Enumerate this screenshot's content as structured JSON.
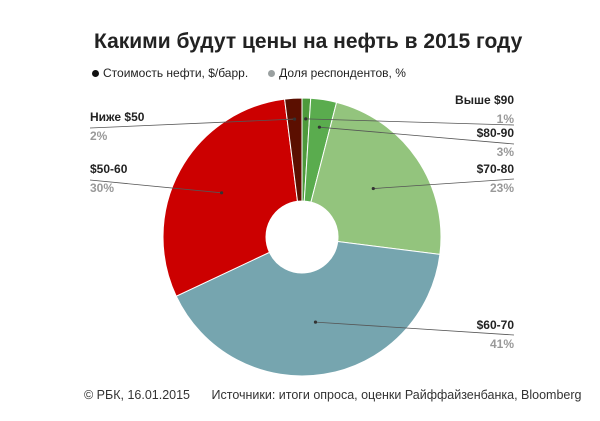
{
  "title": "Какими будут цены на нефть в 2015 году",
  "legend": {
    "items": [
      {
        "label": "Стоимость нефти, $/барр.",
        "color": "#111111"
      },
      {
        "label": "Доля респондентов, %",
        "color": "#9aa0a0"
      }
    ]
  },
  "footer": {
    "copyright": "© РБК, 16.01.2015",
    "sources": "Источники: итоги опроса, оценки Райффайзенбанка, Bloomberg"
  },
  "chart_data": {
    "type": "pie",
    "variant": "donut",
    "title": "Какими будут цены на нефть в 2015 году",
    "categories": [
      "Выше $90",
      "$80-90",
      "$70-80",
      "$60-70",
      "$50-60",
      "Ниже $50"
    ],
    "values": [
      1,
      3,
      23,
      41,
      30,
      2
    ],
    "value_labels": [
      "1%",
      "3%",
      "23%",
      "41%",
      "30%",
      "2%"
    ],
    "colors": [
      "#4e9a3c",
      "#5aac4e",
      "#93c47d",
      "#76a5af",
      "#cc0000",
      "#5b0f00"
    ],
    "start_angle_deg": 0,
    "direction": "clockwise",
    "label_color": "#222222",
    "percent_color": "#999999"
  }
}
